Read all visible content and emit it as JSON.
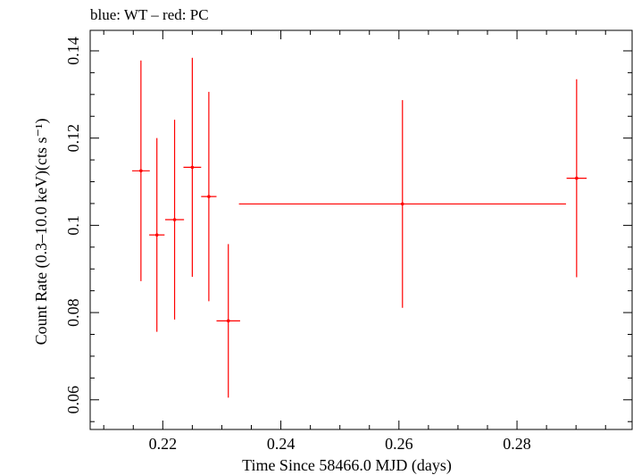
{
  "chart_data": {
    "type": "scatter",
    "title": "blue: WT – red: PC",
    "xlabel": "Time Since 58466.0 MJD (days)",
    "ylabel": "Count Rate (0.3–10.0 keV)(cts s⁻¹)",
    "xlim": [
      0.2077,
      0.2995
    ],
    "ylim": [
      0.0532,
      0.1447
    ],
    "x_major_ticks": [
      0.22,
      0.24,
      0.26,
      0.28
    ],
    "x_tick_labels": [
      "0.22",
      "0.24",
      "0.26",
      "0.28"
    ],
    "y_major_ticks": [
      0.06,
      0.08,
      0.1,
      0.12,
      0.14
    ],
    "y_tick_labels": [
      "0.06",
      "0.08",
      "0.1",
      "0.12",
      "0.14"
    ],
    "grid": false,
    "series": [
      {
        "name": "PC",
        "color": "#ff0000",
        "points": [
          {
            "x": 0.2163,
            "xerr": 0.0015,
            "y": 0.1125,
            "yerr_low": 0.0253,
            "yerr_high": 0.0253
          },
          {
            "x": 0.219,
            "xerr": 0.0013,
            "y": 0.0978,
            "yerr_low": 0.0222,
            "yerr_high": 0.0222
          },
          {
            "x": 0.222,
            "xerr": 0.0016,
            "y": 0.1013,
            "yerr_low": 0.0229,
            "yerr_high": 0.0229
          },
          {
            "x": 0.225,
            "xerr": 0.0015,
            "y": 0.1133,
            "yerr_low": 0.0251,
            "yerr_high": 0.0251
          },
          {
            "x": 0.2278,
            "xerr": 0.0013,
            "y": 0.1066,
            "yerr_low": 0.024,
            "yerr_high": 0.024
          },
          {
            "x": 0.2311,
            "xerr": 0.002,
            "y": 0.0781,
            "yerr_low": 0.0176,
            "yerr_high": 0.0176
          },
          {
            "x": 0.2606,
            "xerr": 0.0277,
            "y": 0.1049,
            "yerr_low": 0.0238,
            "yerr_high": 0.0238
          },
          {
            "x": 0.2901,
            "xerr": 0.0017,
            "y": 0.1108,
            "yerr_low": 0.0227,
            "yerr_high": 0.0227
          }
        ]
      }
    ]
  }
}
